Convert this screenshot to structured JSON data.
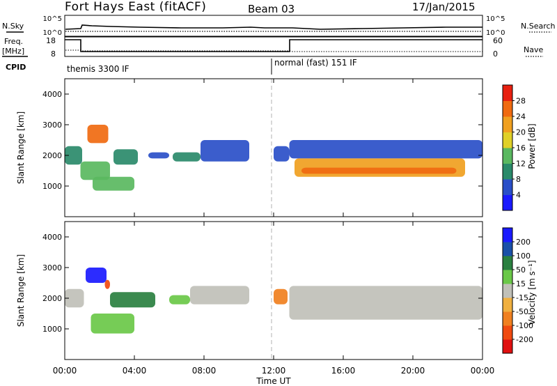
{
  "header": {
    "title": "Fort Hays East (fitACF)",
    "beam": "Beam 03",
    "date": "17/Jan/2015"
  },
  "strip_labels": {
    "nsky": "N.Sky",
    "freq_top": "Freq.",
    "freq_unit": "[MHz]",
    "cpid": "CPID",
    "nsearch": "N.Search",
    "nave": "Nave"
  },
  "strip_ticks": {
    "nsky_left": [
      "10^5",
      "10^0"
    ],
    "nsky_right": [
      "10^5",
      "10^0"
    ],
    "freq_left": [
      "18",
      "8"
    ],
    "nave_right": [
      "60",
      "0"
    ]
  },
  "cpid_segments": [
    {
      "label": "themis 3300 IF",
      "start_hour": 0
    },
    {
      "label": "normal (fast) 151 IF",
      "start_hour": 12
    }
  ],
  "colors": {
    "velocity_gray": "#c0c0b8",
    "divider": "#b0b0b0"
  },
  "chart_data": [
    {
      "type": "heatmap",
      "name": "power",
      "ylabel": "Slant Range [km]",
      "yticks": [
        1000,
        2000,
        3000,
        4000
      ],
      "ylim": [
        0,
        4500
      ],
      "xlim": [
        0,
        24
      ],
      "colorbar": {
        "label": "Power [dB]",
        "ticks": [
          "4",
          "8",
          "12",
          "16",
          "20",
          "24",
          "28"
        ],
        "colors": [
          "#1a1aff",
          "#2a4fc8",
          "#2a8a6a",
          "#5ab860",
          "#e0d028",
          "#f0a020",
          "#f06a10",
          "#e82010"
        ]
      },
      "regions": [
        {
          "x0": 0.0,
          "x1": 1.0,
          "y0": 1700,
          "y1": 2300,
          "level": 0.35
        },
        {
          "x0": 0.9,
          "x1": 2.6,
          "y0": 1200,
          "y1": 1800,
          "level": 0.45
        },
        {
          "x0": 1.3,
          "x1": 2.5,
          "y0": 2400,
          "y1": 3000,
          "level": 0.8
        },
        {
          "x0": 1.6,
          "x1": 4.0,
          "y0": 850,
          "y1": 1300,
          "level": 0.4
        },
        {
          "x0": 2.8,
          "x1": 4.2,
          "y0": 1700,
          "y1": 2200,
          "level": 0.25
        },
        {
          "x0": 4.8,
          "x1": 6.0,
          "y0": 1900,
          "y1": 2100,
          "level": 0.2
        },
        {
          "x0": 6.2,
          "x1": 7.8,
          "y0": 1800,
          "y1": 2100,
          "level": 0.3
        },
        {
          "x0": 7.8,
          "x1": 10.6,
          "y0": 1800,
          "y1": 2500,
          "level": 0.15
        },
        {
          "x0": 12.0,
          "x1": 12.9,
          "y0": 1800,
          "y1": 2300,
          "level": 0.15
        },
        {
          "x0": 12.9,
          "x1": 24.0,
          "y0": 1900,
          "y1": 2500,
          "level": 0.1
        },
        {
          "x0": 13.2,
          "x1": 23.0,
          "y0": 1300,
          "y1": 1900,
          "level": 0.65
        },
        {
          "x0": 13.6,
          "x1": 22.5,
          "y0": 1400,
          "y1": 1600,
          "level": 0.85
        }
      ]
    },
    {
      "type": "heatmap",
      "name": "velocity",
      "ylabel": "Slant Range [km]",
      "yticks": [
        1000,
        2000,
        3000,
        4000
      ],
      "ylim": [
        0,
        4500
      ],
      "xlim": [
        0,
        24
      ],
      "colorbar": {
        "label": "Velocity [m s⁻¹]",
        "ticks": [
          "-200",
          "-100",
          "-50",
          "-15",
          "15",
          "50",
          "100",
          "200"
        ],
        "colors": [
          "#e01010",
          "#f04a10",
          "#f08020",
          "#f0b040",
          "#c0c0b8",
          "#6ac848",
          "#2a8040",
          "#1a50a8",
          "#1a1aff"
        ]
      },
      "regions": [
        {
          "x0": 0.0,
          "x1": 1.1,
          "y0": 1700,
          "y1": 2300,
          "level": 0.5
        },
        {
          "x0": 1.2,
          "x1": 2.4,
          "y0": 2500,
          "y1": 3000,
          "level": 0.95
        },
        {
          "x0": 2.3,
          "x1": 2.6,
          "y0": 2300,
          "y1": 2600,
          "level": 0.1
        },
        {
          "x0": 1.5,
          "x1": 4.0,
          "y0": 850,
          "y1": 1500,
          "level": 0.65
        },
        {
          "x0": 2.6,
          "x1": 5.2,
          "y0": 1700,
          "y1": 2200,
          "level": 0.8
        },
        {
          "x0": 6.0,
          "x1": 7.2,
          "y0": 1800,
          "y1": 2100,
          "level": 0.65
        },
        {
          "x0": 7.2,
          "x1": 10.6,
          "y0": 1800,
          "y1": 2400,
          "level": 0.5
        },
        {
          "x0": 12.0,
          "x1": 12.8,
          "y0": 1800,
          "y1": 2300,
          "level": 0.2
        },
        {
          "x0": 12.9,
          "x1": 24.0,
          "y0": 1300,
          "y1": 2400,
          "level": 0.5
        }
      ]
    }
  ],
  "x_axis": {
    "label": "Time UT",
    "ticks": [
      "00:00",
      "04:00",
      "08:00",
      "12:00",
      "16:00",
      "20:00",
      "00:00"
    ]
  }
}
